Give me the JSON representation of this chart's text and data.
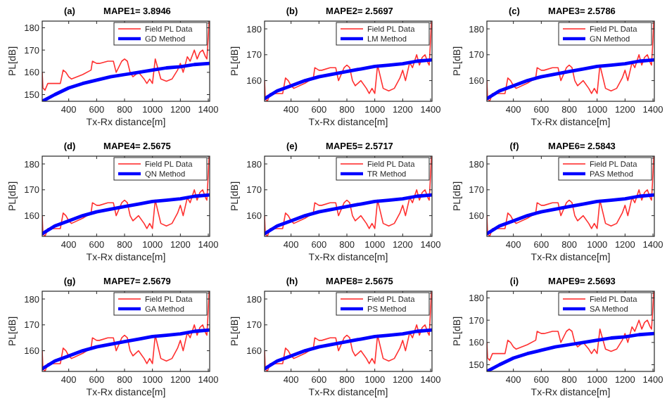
{
  "chart_data": [
    {
      "type": "line",
      "title": "MAPE1= 3.8946",
      "annotations": [
        "(a)"
      ],
      "xlabel": "Tx-Rx distance[m]",
      "ylabel": "PL[dB]",
      "xlim": [
        210,
        1410
      ],
      "xticks": [
        400,
        600,
        800,
        1000,
        1200,
        1400
      ],
      "ylim": [
        147,
        183
      ],
      "yticks": [
        150,
        160,
        170,
        180
      ],
      "legend": "top right",
      "series": [
        {
          "name": "Field PL Data",
          "color": "#ff3030",
          "x": [
            210,
            215,
            230,
            250,
            300,
            340,
            360,
            380,
            400,
            420,
            500,
            560,
            570,
            600,
            620,
            680,
            720,
            740,
            780,
            800,
            820,
            840,
            860,
            900,
            940,
            960,
            980,
            1000,
            1020,
            1060,
            1100,
            1140,
            1180,
            1200,
            1220,
            1250,
            1270,
            1300,
            1320,
            1340,
            1360,
            1380,
            1390,
            1400,
            1405,
            1410
          ],
          "values": [
            160,
            153,
            152,
            155,
            155,
            155,
            161,
            160,
            158,
            157,
            159,
            161,
            165,
            164,
            164,
            165,
            165,
            160,
            165,
            166,
            165,
            160,
            158,
            160,
            157,
            155,
            157,
            155,
            166,
            157,
            156,
            157,
            161,
            164,
            160,
            167,
            165,
            170,
            166,
            169,
            170,
            167,
            166,
            176,
            182,
            183
          ]
        },
        {
          "name": "GD Method",
          "color": "#0000ff",
          "x": [
            210,
            300,
            400,
            500,
            600,
            700,
            800,
            900,
            1000,
            1100,
            1200,
            1300,
            1410
          ],
          "values": [
            147,
            150,
            153,
            155,
            156.5,
            158,
            159,
            160,
            161,
            162,
            162.5,
            163.5,
            164
          ]
        }
      ]
    },
    {
      "type": "line",
      "title": "MAPE2= 2.5697",
      "annotations": [
        "(b)"
      ],
      "xlabel": "Tx-Rx distance[m]",
      "ylabel": "PL[dB]",
      "xlim": [
        210,
        1410
      ],
      "xticks": [
        400,
        600,
        800,
        1000,
        1200,
        1400
      ],
      "ylim": [
        152,
        183
      ],
      "yticks": [
        160,
        170,
        180
      ],
      "legend": "top right",
      "series": [
        {
          "name": "Field PL Data",
          "color": "#ff3030",
          "x": [
            210,
            215,
            230,
            250,
            300,
            340,
            360,
            380,
            400,
            420,
            500,
            560,
            570,
            600,
            620,
            680,
            720,
            740,
            780,
            800,
            820,
            840,
            860,
            900,
            940,
            960,
            980,
            1000,
            1020,
            1060,
            1100,
            1140,
            1180,
            1200,
            1220,
            1250,
            1270,
            1300,
            1320,
            1340,
            1360,
            1380,
            1390,
            1400,
            1405,
            1410
          ],
          "values": [
            160,
            153,
            152,
            155,
            155,
            155,
            161,
            160,
            158,
            157,
            159,
            161,
            165,
            164,
            164,
            165,
            165,
            160,
            165,
            166,
            165,
            160,
            158,
            160,
            157,
            155,
            157,
            155,
            166,
            157,
            156,
            157,
            161,
            164,
            160,
            167,
            165,
            170,
            166,
            169,
            170,
            167,
            166,
            176,
            182,
            183
          ]
        },
        {
          "name": "LM Method",
          "color": "#0000ff",
          "x": [
            210,
            300,
            400,
            500,
            600,
            700,
            800,
            900,
            1000,
            1100,
            1200,
            1300,
            1410
          ],
          "values": [
            153,
            156,
            158,
            160,
            161.5,
            162.5,
            163.5,
            164.5,
            165.5,
            166,
            166.5,
            167.5,
            168
          ]
        }
      ]
    },
    {
      "type": "line",
      "title": "MAPE3= 2.5786",
      "annotations": [
        "(c)"
      ],
      "xlabel": "Tx-Rx distance[m]",
      "ylabel": "PL[dB]",
      "xlim": [
        210,
        1410
      ],
      "xticks": [
        400,
        600,
        800,
        1000,
        1200,
        1400
      ],
      "ylim": [
        152,
        183
      ],
      "yticks": [
        160,
        170,
        180
      ],
      "legend": "top right",
      "series": [
        {
          "name": "Field PL Data",
          "color": "#ff3030",
          "x": [
            210,
            215,
            230,
            250,
            300,
            340,
            360,
            380,
            400,
            420,
            500,
            560,
            570,
            600,
            620,
            680,
            720,
            740,
            780,
            800,
            820,
            840,
            860,
            900,
            940,
            960,
            980,
            1000,
            1020,
            1060,
            1100,
            1140,
            1180,
            1200,
            1220,
            1250,
            1270,
            1300,
            1320,
            1340,
            1360,
            1380,
            1390,
            1400,
            1405,
            1410
          ],
          "values": [
            160,
            153,
            152,
            155,
            155,
            155,
            161,
            160,
            158,
            157,
            159,
            161,
            165,
            164,
            164,
            165,
            165,
            160,
            165,
            166,
            165,
            160,
            158,
            160,
            157,
            155,
            157,
            155,
            166,
            157,
            156,
            157,
            161,
            164,
            160,
            167,
            165,
            170,
            166,
            169,
            170,
            167,
            166,
            176,
            182,
            183
          ]
        },
        {
          "name": "GN Method",
          "color": "#0000ff",
          "x": [
            210,
            300,
            400,
            500,
            600,
            700,
            800,
            900,
            1000,
            1100,
            1200,
            1300,
            1410
          ],
          "values": [
            153,
            156,
            158,
            160,
            161.5,
            162.5,
            163.5,
            164.5,
            165.5,
            166,
            166.5,
            167.5,
            168
          ]
        }
      ]
    },
    {
      "type": "line",
      "title": "MAPE4= 2.5675",
      "annotations": [
        "(d)"
      ],
      "xlabel": "Tx-Rx distance[m]",
      "ylabel": "PL[dB]",
      "xlim": [
        210,
        1410
      ],
      "xticks": [
        400,
        600,
        800,
        1000,
        1200,
        1400
      ],
      "ylim": [
        152,
        183
      ],
      "yticks": [
        160,
        170,
        180
      ],
      "legend": "top right",
      "series": [
        {
          "name": "Field PL Data",
          "color": "#ff3030",
          "x": [
            210,
            215,
            230,
            250,
            300,
            340,
            360,
            380,
            400,
            420,
            500,
            560,
            570,
            600,
            620,
            680,
            720,
            740,
            780,
            800,
            820,
            840,
            860,
            900,
            940,
            960,
            980,
            1000,
            1020,
            1060,
            1100,
            1140,
            1180,
            1200,
            1220,
            1250,
            1270,
            1300,
            1320,
            1340,
            1360,
            1380,
            1390,
            1400,
            1405,
            1410
          ],
          "values": [
            160,
            153,
            152,
            155,
            155,
            155,
            161,
            160,
            158,
            157,
            159,
            161,
            165,
            164,
            164,
            165,
            165,
            160,
            165,
            166,
            165,
            160,
            158,
            160,
            157,
            155,
            157,
            155,
            166,
            157,
            156,
            157,
            161,
            164,
            160,
            167,
            165,
            170,
            166,
            169,
            170,
            167,
            166,
            176,
            182,
            183
          ]
        },
        {
          "name": "QN Method",
          "color": "#0000ff",
          "x": [
            210,
            300,
            400,
            500,
            600,
            700,
            800,
            900,
            1000,
            1100,
            1200,
            1300,
            1410
          ],
          "values": [
            153,
            156,
            158,
            160,
            161.5,
            162.5,
            163.5,
            164.5,
            165.5,
            166,
            166.5,
            167.5,
            168
          ]
        }
      ]
    },
    {
      "type": "line",
      "title": "MAPE5= 2.5717",
      "annotations": [
        "(e)"
      ],
      "xlabel": "Tx-Rx distance[m]",
      "ylabel": "PL[dB]",
      "xlim": [
        210,
        1410
      ],
      "xticks": [
        400,
        600,
        800,
        1000,
        1200,
        1400
      ],
      "ylim": [
        152,
        183
      ],
      "yticks": [
        160,
        170,
        180
      ],
      "legend": "top right",
      "series": [
        {
          "name": "Field PL Data",
          "color": "#ff3030",
          "x": [
            210,
            215,
            230,
            250,
            300,
            340,
            360,
            380,
            400,
            420,
            500,
            560,
            570,
            600,
            620,
            680,
            720,
            740,
            780,
            800,
            820,
            840,
            860,
            900,
            940,
            960,
            980,
            1000,
            1020,
            1060,
            1100,
            1140,
            1180,
            1200,
            1220,
            1250,
            1270,
            1300,
            1320,
            1340,
            1360,
            1380,
            1390,
            1400,
            1405,
            1410
          ],
          "values": [
            160,
            153,
            152,
            155,
            155,
            155,
            161,
            160,
            158,
            157,
            159,
            161,
            165,
            164,
            164,
            165,
            165,
            160,
            165,
            166,
            165,
            160,
            158,
            160,
            157,
            155,
            157,
            155,
            166,
            157,
            156,
            157,
            161,
            164,
            160,
            167,
            165,
            170,
            166,
            169,
            170,
            167,
            166,
            176,
            182,
            183
          ]
        },
        {
          "name": "TR Method",
          "color": "#0000ff",
          "x": [
            210,
            300,
            400,
            500,
            600,
            700,
            800,
            900,
            1000,
            1100,
            1200,
            1300,
            1410
          ],
          "values": [
            153,
            156,
            158,
            160,
            161.5,
            162.5,
            163.5,
            164.5,
            165.5,
            166,
            166.5,
            167.5,
            168
          ]
        }
      ]
    },
    {
      "type": "line",
      "title": "MAPE6= 2.5843",
      "annotations": [
        "(f)"
      ],
      "xlabel": "Tx-Rx distance[m]",
      "ylabel": "PL[dB]",
      "xlim": [
        210,
        1410
      ],
      "xticks": [
        400,
        600,
        800,
        1000,
        1200,
        1400
      ],
      "ylim": [
        152,
        183
      ],
      "yticks": [
        160,
        170,
        180
      ],
      "legend": "top right",
      "series": [
        {
          "name": "Field PL Data",
          "color": "#ff3030",
          "x": [
            210,
            215,
            230,
            250,
            300,
            340,
            360,
            380,
            400,
            420,
            500,
            560,
            570,
            600,
            620,
            680,
            720,
            740,
            780,
            800,
            820,
            840,
            860,
            900,
            940,
            960,
            980,
            1000,
            1020,
            1060,
            1100,
            1140,
            1180,
            1200,
            1220,
            1250,
            1270,
            1300,
            1320,
            1340,
            1360,
            1380,
            1390,
            1400,
            1405,
            1410
          ],
          "values": [
            160,
            153,
            152,
            155,
            155,
            155,
            161,
            160,
            158,
            157,
            159,
            161,
            165,
            164,
            164,
            165,
            165,
            160,
            165,
            166,
            165,
            160,
            158,
            160,
            157,
            155,
            157,
            155,
            166,
            157,
            156,
            157,
            161,
            164,
            160,
            167,
            165,
            170,
            166,
            169,
            170,
            167,
            166,
            176,
            182,
            183
          ]
        },
        {
          "name": "PAS Method",
          "color": "#0000ff",
          "x": [
            210,
            300,
            400,
            500,
            600,
            700,
            800,
            900,
            1000,
            1100,
            1200,
            1300,
            1410
          ],
          "values": [
            153,
            156,
            158,
            160,
            161.5,
            162.5,
            163.5,
            164.5,
            165.5,
            166,
            166.5,
            167.5,
            168
          ]
        }
      ]
    },
    {
      "type": "line",
      "title": "MAPE7= 2.5679",
      "annotations": [
        "(g)"
      ],
      "xlabel": "Tx-Rx distance[m]",
      "ylabel": "PL[dB]",
      "xlim": [
        210,
        1410
      ],
      "xticks": [
        400,
        600,
        800,
        1000,
        1200,
        1400
      ],
      "ylim": [
        152,
        183
      ],
      "yticks": [
        160,
        170,
        180
      ],
      "legend": "top right",
      "series": [
        {
          "name": "Field PL Data",
          "color": "#ff3030",
          "x": [
            210,
            215,
            230,
            250,
            300,
            340,
            360,
            380,
            400,
            420,
            500,
            560,
            570,
            600,
            620,
            680,
            720,
            740,
            780,
            800,
            820,
            840,
            860,
            900,
            940,
            960,
            980,
            1000,
            1020,
            1060,
            1100,
            1140,
            1180,
            1200,
            1220,
            1250,
            1270,
            1300,
            1320,
            1340,
            1360,
            1380,
            1390,
            1400,
            1405,
            1410
          ],
          "values": [
            160,
            153,
            152,
            155,
            155,
            155,
            161,
            160,
            158,
            157,
            159,
            161,
            165,
            164,
            164,
            165,
            165,
            160,
            165,
            166,
            165,
            160,
            158,
            160,
            157,
            155,
            157,
            155,
            166,
            157,
            156,
            157,
            161,
            164,
            160,
            167,
            165,
            170,
            166,
            169,
            170,
            167,
            166,
            176,
            182,
            183
          ]
        },
        {
          "name": "GA Method",
          "color": "#0000ff",
          "x": [
            210,
            300,
            400,
            500,
            600,
            700,
            800,
            900,
            1000,
            1100,
            1200,
            1300,
            1410
          ],
          "values": [
            153,
            156,
            158,
            160,
            161.5,
            162.5,
            163.5,
            164.5,
            165.5,
            166,
            166.5,
            167.5,
            168
          ]
        }
      ]
    },
    {
      "type": "line",
      "title": "MAPE8= 2.5675",
      "annotations": [
        "(h)"
      ],
      "xlabel": "Tx-Rx distance[m]",
      "ylabel": "PL[dB]",
      "xlim": [
        210,
        1410
      ],
      "xticks": [
        400,
        600,
        800,
        1000,
        1200,
        1400
      ],
      "ylim": [
        152,
        183
      ],
      "yticks": [
        160,
        170,
        180
      ],
      "legend": "top right",
      "series": [
        {
          "name": "Field PL Data",
          "color": "#ff3030",
          "x": [
            210,
            215,
            230,
            250,
            300,
            340,
            360,
            380,
            400,
            420,
            500,
            560,
            570,
            600,
            620,
            680,
            720,
            740,
            780,
            800,
            820,
            840,
            860,
            900,
            940,
            960,
            980,
            1000,
            1020,
            1060,
            1100,
            1140,
            1180,
            1200,
            1220,
            1250,
            1270,
            1300,
            1320,
            1340,
            1360,
            1380,
            1390,
            1400,
            1405,
            1410
          ],
          "values": [
            160,
            153,
            152,
            155,
            155,
            155,
            161,
            160,
            158,
            157,
            159,
            161,
            165,
            164,
            164,
            165,
            165,
            160,
            165,
            166,
            165,
            160,
            158,
            160,
            157,
            155,
            157,
            155,
            166,
            157,
            156,
            157,
            161,
            164,
            160,
            167,
            165,
            170,
            166,
            169,
            170,
            167,
            166,
            176,
            182,
            183
          ]
        },
        {
          "name": "PS Method",
          "color": "#0000ff",
          "x": [
            210,
            300,
            400,
            500,
            600,
            700,
            800,
            900,
            1000,
            1100,
            1200,
            1300,
            1410
          ],
          "values": [
            153,
            156,
            158,
            160,
            161.5,
            162.5,
            163.5,
            164.5,
            165.5,
            166,
            166.5,
            167.5,
            168
          ]
        }
      ]
    },
    {
      "type": "line",
      "title": "MAPE9= 2.5693",
      "annotations": [
        "(i)"
      ],
      "xlabel": "Tx-Rx distance[m]",
      "ylabel": "PL[dB]",
      "xlim": [
        210,
        1410
      ],
      "xticks": [
        400,
        600,
        800,
        1000,
        1200,
        1400
      ],
      "ylim": [
        147,
        183
      ],
      "yticks": [
        150,
        160,
        170,
        180
      ],
      "legend": "top right",
      "series": [
        {
          "name": "Field PL Data",
          "color": "#ff3030",
          "x": [
            210,
            215,
            230,
            250,
            300,
            340,
            360,
            380,
            400,
            420,
            500,
            560,
            570,
            600,
            620,
            680,
            720,
            740,
            780,
            800,
            820,
            840,
            860,
            900,
            940,
            960,
            980,
            1000,
            1020,
            1060,
            1100,
            1140,
            1180,
            1200,
            1220,
            1250,
            1270,
            1300,
            1320,
            1340,
            1360,
            1380,
            1390,
            1400,
            1405,
            1410
          ],
          "values": [
            160,
            153,
            152,
            155,
            155,
            155,
            161,
            160,
            158,
            157,
            159,
            161,
            165,
            164,
            164,
            165,
            165,
            160,
            165,
            166,
            165,
            160,
            158,
            160,
            157,
            155,
            157,
            155,
            166,
            157,
            156,
            157,
            161,
            164,
            160,
            167,
            165,
            170,
            166,
            169,
            170,
            167,
            166,
            176,
            182,
            183
          ]
        },
        {
          "name": "SA Method",
          "color": "#0000ff",
          "x": [
            210,
            300,
            400,
            500,
            600,
            700,
            800,
            900,
            1000,
            1100,
            1200,
            1300,
            1410
          ],
          "values": [
            147,
            150,
            153,
            155,
            156.5,
            158,
            159,
            160,
            161,
            162,
            162.5,
            163.5,
            164
          ]
        }
      ]
    }
  ]
}
